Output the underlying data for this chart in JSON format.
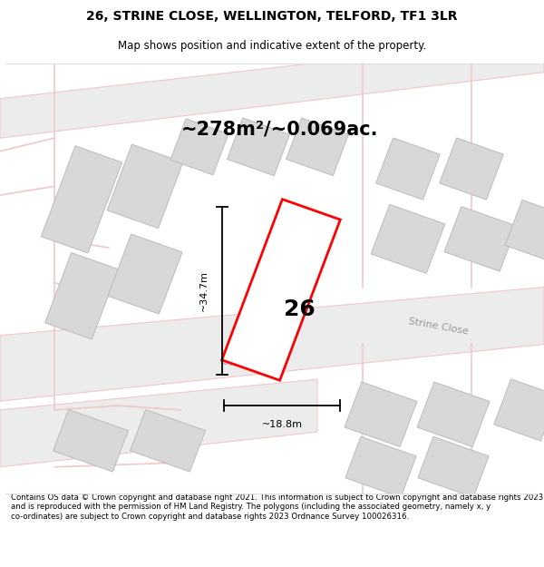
{
  "title_line1": "26, STRINE CLOSE, WELLINGTON, TELFORD, TF1 3LR",
  "title_line2": "Map shows position and indicative extent of the property.",
  "area_text": "~278m²/~0.069ac.",
  "label_26": "26",
  "dim_vertical": "~34.7m",
  "dim_horizontal": "~18.8m",
  "street_label_main": "Strine Close",
  "street_label_upper": "Strine Close",
  "footer_text": "Contains OS data © Crown copyright and database right 2021. This information is subject to Crown copyright and database rights 2023 and is reproduced with the permission of HM Land Registry. The polygons (including the associated geometry, namely x, y co-ordinates) are subject to Crown copyright and database rights 2023 Ordnance Survey 100026316.",
  "highlight_fill": "white",
  "highlight_edge": "red",
  "building_fill": "#d8d8d8",
  "building_edge": "#bbbbbb",
  "road_color": "#f5f0f0",
  "road_edge": "#e8c0c0",
  "bg_color": "#f2f2f2",
  "title_fontsize": 10,
  "subtitle_fontsize": 8.5,
  "area_fontsize": 15,
  "label_fontsize": 18,
  "dim_fontsize": 8,
  "street_fontsize": 8,
  "footer_fontsize": 6.2,
  "map_rotation_deg": 20
}
